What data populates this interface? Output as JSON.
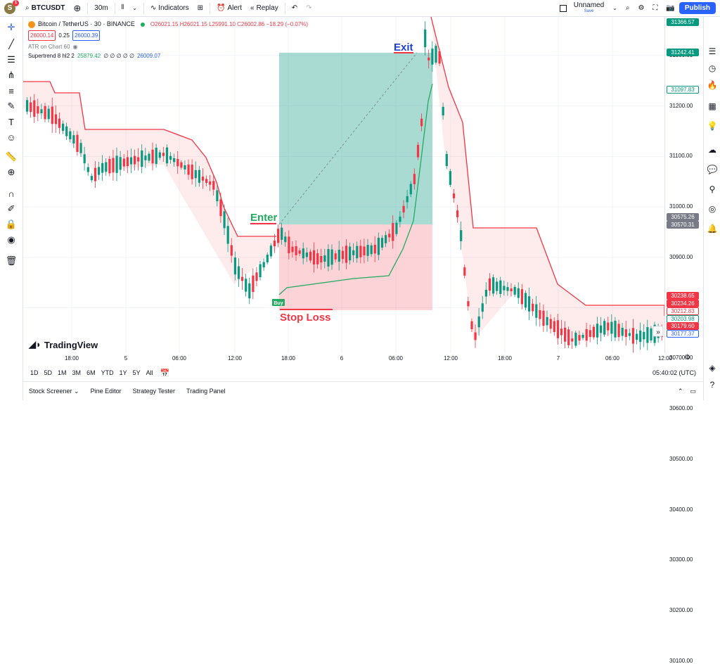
{
  "topbar": {
    "avatar_letter": "S",
    "notif_count": "1",
    "symbol": "BTCUSDT",
    "interval": "30m",
    "indicators": "Indicators",
    "alert": "Alert",
    "replay": "Replay",
    "layout_name": "Unnamed",
    "layout_status": "Save",
    "publish": "Publish"
  },
  "legend": {
    "title": "Bitcoin / TetherUS · 30 · BINANCE",
    "ohlc": "O26021.15 H26021.15 L25991.10 C26002.86 −18.29 (−0.07%)",
    "bid": "26000.14",
    "spread": "0.25",
    "ask": "26000.39",
    "atr": "ATR on Chart 60",
    "supertrend": "Supertrend 8 hl2 2",
    "st_val1": "25879.42",
    "st_zeros": "∅ ∅ ∅ ∅ ∅",
    "st_val2": "26009.07"
  },
  "annotations": {
    "exit": "Exit",
    "enter": "Enter",
    "stop_loss": "Stop Loss",
    "buy": "Buy",
    "watermark": "TradingView"
  },
  "price_axis": {
    "ticks": [
      "31300.00",
      "31200.00",
      "31100.00",
      "31000.00",
      "30900.00",
      "30800.00",
      "30700.00",
      "30600.00",
      "30500.00",
      "30400.00",
      "30300.00",
      "30200.00",
      "30100.00"
    ],
    "tags": [
      {
        "text": "31366.57",
        "bg": "#089981",
        "fg": "#ffffff"
      },
      {
        "text": "31242.41",
        "bg": "#089981",
        "fg": "#ffffff"
      },
      {
        "text": "31097.83",
        "bg": "#ffffff",
        "fg": "#089981"
      },
      {
        "text": "30575.26",
        "bg": "#787b86",
        "fg": "#ffffff"
      },
      {
        "text": "30570.31",
        "bg": "#787b86",
        "fg": "#ffffff"
      },
      {
        "text": "30238.65",
        "bg": "#f23645",
        "fg": "#ffffff"
      },
      {
        "text": "30234.26",
        "bg": "#f23645",
        "fg": "#ffffff"
      },
      {
        "text": "30212.83",
        "bg": "#ffffff",
        "fg": "#f23645"
      },
      {
        "text": "30203.98",
        "bg": "#ffffff",
        "fg": "#089981"
      },
      {
        "text": "30179.60",
        "bg": "#f23645",
        "fg": "#ffffff"
      },
      {
        "text": "30177.37",
        "bg": "#ffffff",
        "fg": "#2962ff"
      }
    ]
  },
  "time_axis": {
    "labels": [
      "18:00",
      "5",
      "06:00",
      "12:00",
      "18:00",
      "6",
      "06:00",
      "12:00",
      "18:00",
      "7",
      "06:00",
      "12:00"
    ]
  },
  "ranges": [
    "1D",
    "5D",
    "1M",
    "3M",
    "6M",
    "YTD",
    "1Y",
    "5Y",
    "All"
  ],
  "clock": "05:40:02 (UTC)",
  "bottom_tabs": [
    "Stock Screener",
    "Pine Editor",
    "Strategy Tester",
    "Trading Panel"
  ],
  "colors": {
    "up": "#089981",
    "down": "#f23645",
    "accent": "#2962ff"
  }
}
